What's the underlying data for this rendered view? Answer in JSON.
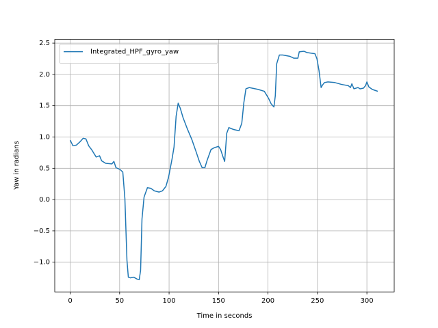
{
  "chart_data": {
    "type": "line",
    "xlabel": "Time in seconds",
    "ylabel": "Yaw in radians",
    "x": [
      0,
      2.8,
      6.2,
      9.7,
      13.1,
      15.9,
      18.7,
      22,
      26.3,
      29.7,
      31.8,
      35.9,
      42.2,
      44.2,
      46.3,
      50.5,
      53.2,
      55.3,
      57.4,
      58.8,
      60.8,
      64.3,
      67.7,
      69.8,
      71.2,
      72.6,
      74.7,
      78.1,
      81.6,
      85,
      89.9,
      93.3,
      96.8,
      99.5,
      103,
      105,
      107.1,
      109.2,
      111.3,
      114.1,
      118.2,
      123,
      127.2,
      130.6,
      133.4,
      136.2,
      138.3,
      142.4,
      145.8,
      150,
      152.1,
      154.8,
      156.2,
      158.3,
      160.4,
      165.2,
      170.7,
      173.5,
      175.6,
      177.7,
      181.1,
      190.1,
      196.3,
      200.5,
      203.2,
      206,
      207.4,
      208.8,
      211.5,
      215,
      221.9,
      226,
      230.2,
      231.6,
      236.4,
      239.2,
      243.3,
      247.5,
      249.5,
      251.6,
      253.7,
      255.1,
      257.1,
      260.6,
      267.5,
      274.4,
      281.3,
      283.4,
      284.8,
      286.9,
      291,
      293.1,
      296.5,
      298.6,
      300,
      302,
      305.5,
      311
    ],
    "series": [
      {
        "name": "Integrated_HPF_gyro_yaw",
        "color": "#1f77b4",
        "values": [
          0.95,
          0.86,
          0.87,
          0.92,
          0.98,
          0.97,
          0.86,
          0.79,
          0.68,
          0.7,
          0.62,
          0.58,
          0.57,
          0.61,
          0.51,
          0.48,
          0.44,
          0.02,
          -0.97,
          -1.24,
          -1.25,
          -1.24,
          -1.27,
          -1.28,
          -1.13,
          -0.31,
          0.04,
          0.19,
          0.18,
          0.14,
          0.12,
          0.14,
          0.21,
          0.36,
          0.65,
          0.84,
          1.33,
          1.54,
          1.46,
          1.31,
          1.14,
          0.96,
          0.77,
          0.61,
          0.51,
          0.51,
          0.62,
          0.8,
          0.83,
          0.85,
          0.8,
          0.67,
          0.61,
          1.06,
          1.15,
          1.12,
          1.1,
          1.22,
          1.55,
          1.77,
          1.79,
          1.76,
          1.73,
          1.62,
          1.53,
          1.48,
          1.66,
          2.17,
          2.31,
          2.31,
          2.29,
          2.26,
          2.26,
          2.36,
          2.37,
          2.35,
          2.34,
          2.33,
          2.25,
          2.06,
          1.79,
          1.83,
          1.87,
          1.88,
          1.87,
          1.84,
          1.82,
          1.79,
          1.85,
          1.77,
          1.79,
          1.77,
          1.78,
          1.82,
          1.88,
          1.8,
          1.76,
          1.73
        ]
      }
    ],
    "xlim": [
      -15.6,
      327.6
    ],
    "ylim": [
      -1.475,
      2.56
    ],
    "xticks": [
      0,
      50,
      100,
      150,
      200,
      250,
      300
    ],
    "yticks": [
      {
        "value": -1.0,
        "label": "−1.0"
      },
      {
        "value": -0.5,
        "label": "−0.5"
      },
      {
        "value": 0.0,
        "label": "0.0"
      },
      {
        "value": 0.5,
        "label": "0.5"
      },
      {
        "value": 1.0,
        "label": "1.0"
      },
      {
        "value": 1.5,
        "label": "1.5"
      },
      {
        "value": 2.0,
        "label": "2.0"
      },
      {
        "value": 2.5,
        "label": "2.5"
      }
    ],
    "grid": true,
    "legend": "upper left"
  }
}
